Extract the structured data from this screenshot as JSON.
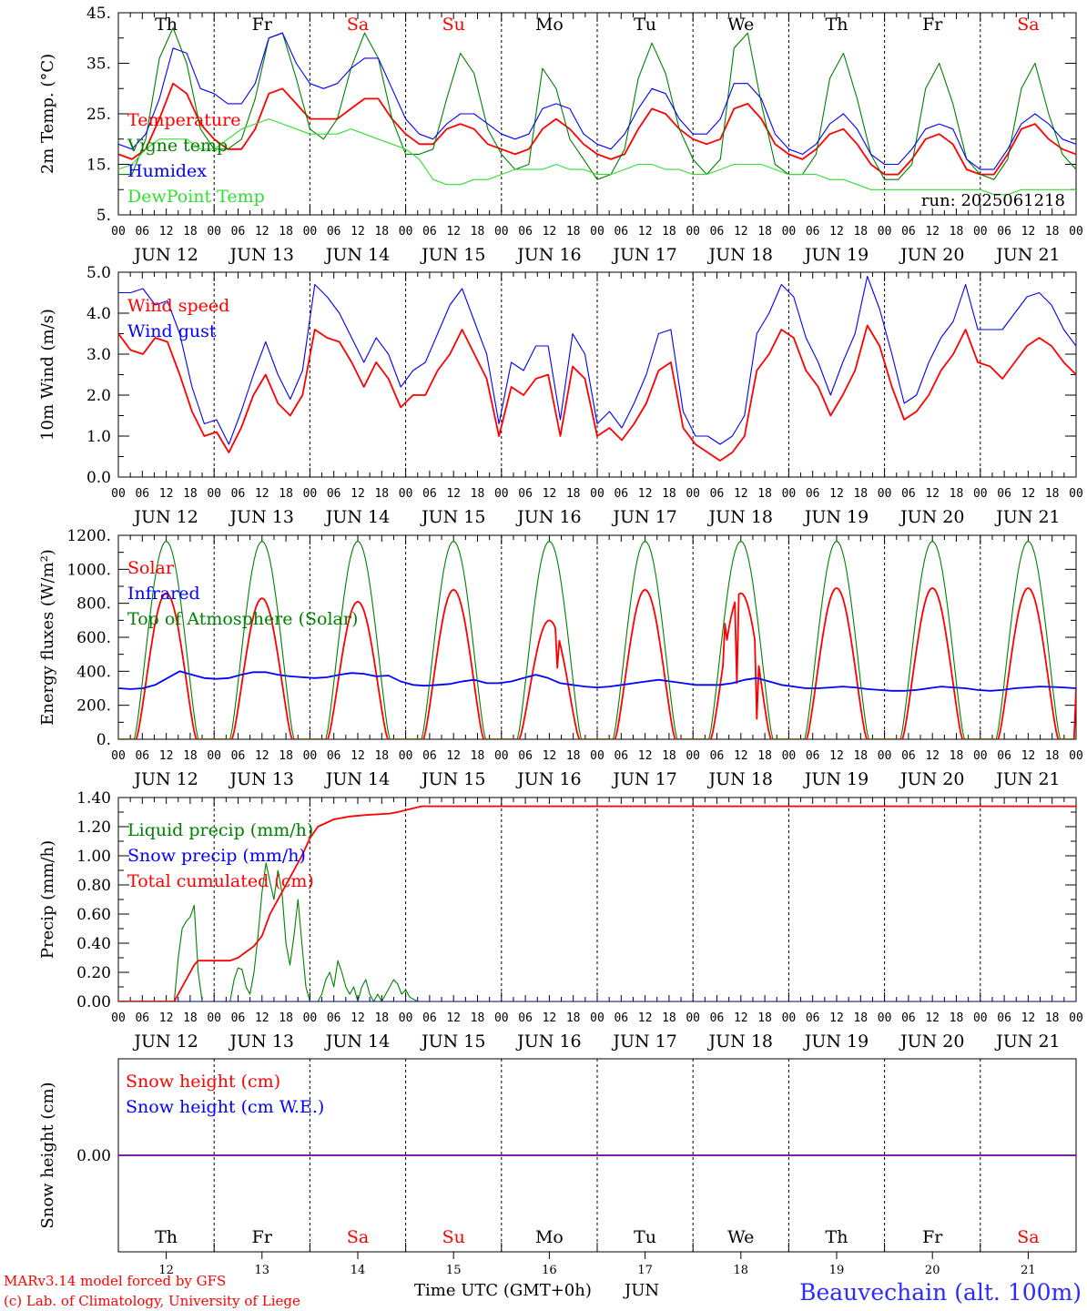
{
  "footer": {
    "model": "MARv3.14 model forced by GFS",
    "lab": "(c) Lab. of Climatology, University of Liege",
    "xlabel": "Time UTC (GMT+0h)",
    "month": "JUN",
    "station": "Beauvechain (alt. 100m)"
  },
  "colors": {
    "red": "#ff0000",
    "green": "#008000",
    "blue": "#0000ff",
    "lightgreen": "#33dd33",
    "weekend": "#ff0000"
  },
  "days": {
    "names": [
      "Th",
      "Fr",
      "Sa",
      "Su",
      "Mo",
      "Tu",
      "We",
      "Th",
      "Fr",
      "Sa"
    ],
    "weekend": [
      false,
      false,
      true,
      true,
      false,
      false,
      false,
      false,
      false,
      true
    ],
    "dates": [
      "JUN 12",
      "JUN 13",
      "JUN 14",
      "JUN 15",
      "JUN 16",
      "JUN 17",
      "JUN 18",
      "JUN 19",
      "JUN 20",
      "JUN 21"
    ],
    "numbers": [
      "12",
      "13",
      "14",
      "15",
      "16",
      "17",
      "18",
      "19",
      "20",
      "21"
    ],
    "hour_labels": [
      "00",
      "06",
      "12",
      "18"
    ],
    "end_label": "00"
  },
  "chart_data": [
    {
      "type": "line",
      "id": "temp",
      "ylabel": "2m Temp. (°C)",
      "ylim": [
        5,
        45
      ],
      "yticks": [
        "5.",
        "15.",
        "25.",
        "35.",
        "45."
      ],
      "yticks_values": [
        5,
        15,
        25,
        35,
        45
      ],
      "annotation": "run: 2025061218",
      "x_unit": "hours from 2025-06-12 00 UTC, 3-hourly",
      "series": [
        {
          "name": "Temperature",
          "color": "#ff0000",
          "values": [
            17,
            16,
            18,
            24,
            31,
            29,
            23,
            20,
            18,
            18,
            22,
            29,
            30,
            27,
            24,
            24,
            24,
            26,
            28,
            28,
            24,
            21,
            19,
            19,
            22,
            23,
            22,
            19,
            18,
            17,
            18,
            22,
            24,
            22,
            19,
            17,
            16,
            17,
            22,
            26,
            25,
            22,
            20,
            19,
            20,
            26,
            27,
            24,
            19,
            17,
            16,
            18,
            21,
            22,
            19,
            15,
            13,
            13,
            16,
            20,
            21,
            19,
            14,
            13,
            13,
            17,
            22,
            23,
            20,
            18,
            17
          ]
        },
        {
          "name": "Vigne temp",
          "color": "#008000",
          "values": [
            13,
            13,
            20,
            36,
            42,
            35,
            22,
            18,
            18,
            20,
            28,
            40,
            41,
            32,
            22,
            20,
            24,
            34,
            41,
            36,
            24,
            17,
            17,
            18,
            28,
            37,
            33,
            22,
            17,
            14,
            15,
            34,
            30,
            20,
            16,
            12,
            13,
            18,
            32,
            39,
            33,
            22,
            16,
            13,
            16,
            38,
            41,
            27,
            15,
            13,
            13,
            17,
            32,
            37,
            28,
            17,
            12,
            12,
            15,
            30,
            35,
            27,
            16,
            13,
            12,
            16,
            30,
            35,
            25,
            17,
            14
          ]
        },
        {
          "name": "Humidex",
          "color": "#0000ff",
          "values": [
            19,
            18,
            21,
            28,
            38,
            37,
            30,
            29,
            27,
            27,
            31,
            40,
            41,
            35,
            31,
            30,
            31,
            34,
            36,
            36,
            30,
            24,
            21,
            20,
            23,
            25,
            25,
            23,
            21,
            20,
            21,
            26,
            27,
            26,
            21,
            19,
            18,
            21,
            26,
            30,
            29,
            24,
            21,
            21,
            24,
            31,
            31,
            28,
            21,
            18,
            17,
            19,
            23,
            25,
            22,
            17,
            15,
            15,
            18,
            22,
            23,
            22,
            16,
            14,
            14,
            18,
            23,
            25,
            23,
            20,
            19
          ]
        },
        {
          "name": "DewPoint Temp",
          "color": "#33dd33",
          "values": [
            14,
            15,
            18,
            20,
            20,
            20,
            18,
            18,
            20,
            22,
            23,
            24,
            23,
            22,
            21,
            21,
            21,
            22,
            21,
            20,
            19,
            18,
            16,
            12,
            11,
            11,
            12,
            12,
            13,
            14,
            14,
            14,
            15,
            14,
            14,
            13,
            13,
            14,
            15,
            15,
            14,
            14,
            13,
            13,
            14,
            15,
            15,
            15,
            14,
            13,
            13,
            13,
            12,
            12,
            11,
            10,
            10,
            10,
            10,
            10,
            10,
            10,
            10,
            10,
            9,
            9,
            10,
            10,
            10,
            10,
            10
          ]
        }
      ]
    },
    {
      "type": "line",
      "id": "wind",
      "ylabel": "10m Wind (m/s)",
      "ylim": [
        0,
        5
      ],
      "yticks": [
        "0.0",
        "1.0",
        "2.0",
        "3.0",
        "4.0",
        "5.0"
      ],
      "yticks_values": [
        0,
        1,
        2,
        3,
        4,
        5
      ],
      "x_unit": "hours from 2025-06-12 00 UTC, 3-hourly",
      "series": [
        {
          "name": "Wind speed",
          "color": "#ff0000",
          "values": [
            3.5,
            3.1,
            3.0,
            3.4,
            3.3,
            2.5,
            1.6,
            1.0,
            1.1,
            0.6,
            1.2,
            2.0,
            2.5,
            1.8,
            1.5,
            2.0,
            3.6,
            3.4,
            3.3,
            2.8,
            2.2,
            2.8,
            2.4,
            1.7,
            2.0,
            2.0,
            2.6,
            3.0,
            3.6,
            3.0,
            2.4,
            1.0,
            2.2,
            2.0,
            2.4,
            2.5,
            1.0,
            2.7,
            2.4,
            1.0,
            1.2,
            0.9,
            1.3,
            1.8,
            2.6,
            2.8,
            1.2,
            0.8,
            0.6,
            0.4,
            0.6,
            1.0,
            2.6,
            3.0,
            3.6,
            3.4,
            2.6,
            2.2,
            1.5,
            2.0,
            2.6,
            3.7,
            3.2,
            2.2,
            1.4,
            1.6,
            2.0,
            2.6,
            3.0,
            3.6,
            2.8,
            2.7,
            2.4,
            2.8,
            3.2,
            3.4,
            3.2,
            2.8,
            2.5
          ]
        },
        {
          "name": "Wind gust",
          "color": "#0000ff",
          "values": [
            4.5,
            4.5,
            4.6,
            4.2,
            4.3,
            3.5,
            2.2,
            1.3,
            1.4,
            0.8,
            1.6,
            2.5,
            3.3,
            2.5,
            1.9,
            2.6,
            4.7,
            4.4,
            4.0,
            3.4,
            2.8,
            3.4,
            3.0,
            2.2,
            2.6,
            2.8,
            3.5,
            4.2,
            4.6,
            3.8,
            3.0,
            1.3,
            2.8,
            2.6,
            3.2,
            3.2,
            1.4,
            3.5,
            3.0,
            1.3,
            1.6,
            1.2,
            1.8,
            2.5,
            3.5,
            3.6,
            1.6,
            1.0,
            1.0,
            0.8,
            1.0,
            1.5,
            3.5,
            4.0,
            4.7,
            4.4,
            3.4,
            2.8,
            2.0,
            2.8,
            3.5,
            4.9,
            4.1,
            3.0,
            1.8,
            2.0,
            2.8,
            3.4,
            3.8,
            4.7,
            3.6,
            3.6,
            3.6,
            4.0,
            4.4,
            4.5,
            4.2,
            3.6,
            3.2
          ]
        }
      ]
    },
    {
      "type": "line",
      "id": "energy",
      "ylabel": "Energy fluxes (W/m²)",
      "ylim": [
        0,
        1200
      ],
      "yticks": [
        "0.",
        "200.",
        "400.",
        "600.",
        "800.",
        "1000.",
        "1200."
      ],
      "yticks_values": [
        0,
        200,
        400,
        600,
        800,
        1000,
        1200
      ],
      "x_unit": "hours from 2025-06-12 00 UTC",
      "series": [
        {
          "name": "Solar",
          "color": "#ff0000",
          "daily_peak": [
            860,
            830,
            810,
            880,
            700,
            880,
            860,
            890,
            890,
            890
          ],
          "dips": [
            {
              "x": 160,
              "v": 120
            },
            {
              "x": 152,
              "v": 680
            },
            {
              "x": 155,
              "v": 330
            },
            {
              "x": 252,
              "v": 300
            },
            {
              "x": 110,
              "v": 420
            }
          ]
        },
        {
          "name": "Infrared",
          "color": "#0000ff",
          "values": [
            300,
            295,
            300,
            320,
            360,
            400,
            380,
            360,
            355,
            360,
            380,
            395,
            395,
            380,
            370,
            365,
            360,
            365,
            380,
            390,
            385,
            370,
            375,
            340,
            320,
            315,
            320,
            325,
            340,
            350,
            330,
            330,
            340,
            360,
            380,
            360,
            330,
            320,
            310,
            305,
            310,
            320,
            330,
            340,
            350,
            340,
            330,
            320,
            320,
            320,
            330,
            350,
            360,
            340,
            320,
            310,
            300,
            300,
            305,
            310,
            305,
            295,
            290,
            285,
            285,
            290,
            300,
            310,
            305,
            300,
            290,
            285,
            290,
            300,
            305,
            310,
            308,
            305,
            300
          ]
        },
        {
          "name": "Top of Atmosphere (Solar)",
          "color": "#008000",
          "daily_peak": [
            1165,
            1165,
            1165,
            1165,
            1165,
            1165,
            1165,
            1165,
            1165,
            1165
          ],
          "sunrise_h": 4.0,
          "sunset_h": 20.0
        }
      ]
    },
    {
      "type": "line",
      "id": "precip",
      "ylabel": "Precip (mm/h)",
      "ylim": [
        0,
        1.4
      ],
      "yticks": [
        "0.00",
        "0.20",
        "0.40",
        "0.60",
        "0.80",
        "1.00",
        "1.20",
        "1.40"
      ],
      "yticks_values": [
        0,
        0.2,
        0.4,
        0.6,
        0.8,
        1.0,
        1.2,
        1.4
      ],
      "x_unit": "hours from 2025-06-12 00 UTC",
      "series": [
        {
          "name": "Liquid precip (mm/h)",
          "color": "#008000",
          "points": [
            [
              0,
              0
            ],
            [
              14,
              0
            ],
            [
              15,
              0.3
            ],
            [
              16,
              0.5
            ],
            [
              17,
              0.55
            ],
            [
              18,
              0.58
            ],
            [
              19,
              0.66
            ],
            [
              20,
              0.2
            ],
            [
              21,
              0
            ],
            [
              28,
              0
            ],
            [
              29,
              0.15
            ],
            [
              30,
              0.23
            ],
            [
              31,
              0.22
            ],
            [
              32,
              0.1
            ],
            [
              33,
              0.05
            ],
            [
              34,
              0.2
            ],
            [
              35,
              0.45
            ],
            [
              36,
              0.75
            ],
            [
              37,
              0.95
            ],
            [
              38,
              0.82
            ],
            [
              39,
              0.7
            ],
            [
              40,
              0.9
            ],
            [
              41,
              0.75
            ],
            [
              42,
              0.4
            ],
            [
              43,
              0.25
            ],
            [
              44,
              0.45
            ],
            [
              45,
              0.7
            ],
            [
              46,
              0.4
            ],
            [
              47,
              0.1
            ],
            [
              48,
              0
            ],
            [
              50,
              0
            ],
            [
              51,
              0.05
            ],
            [
              52,
              0.15
            ],
            [
              53,
              0.2
            ],
            [
              54,
              0.1
            ],
            [
              55,
              0.28
            ],
            [
              56,
              0.2
            ],
            [
              57,
              0.1
            ],
            [
              58,
              0.05
            ],
            [
              59,
              0.1
            ],
            [
              60,
              0
            ],
            [
              61,
              0.1
            ],
            [
              62,
              0.15
            ],
            [
              63,
              0.05
            ],
            [
              64,
              0
            ],
            [
              65,
              0.05
            ],
            [
              66,
              0
            ],
            [
              68,
              0.1
            ],
            [
              69,
              0.15
            ],
            [
              70,
              0.12
            ],
            [
              71,
              0.05
            ],
            [
              72,
              0.08
            ],
            [
              73,
              0.03
            ],
            [
              75,
              0
            ],
            [
              240,
              0
            ]
          ]
        },
        {
          "name": "Snow precip (mm/h)",
          "color": "#0000ff",
          "points": [
            [
              0,
              0
            ],
            [
              240,
              0
            ]
          ]
        },
        {
          "name": "Total cumulated (cm)",
          "color": "#ff0000",
          "points": [
            [
              0,
              0
            ],
            [
              14,
              0
            ],
            [
              16,
              0.1
            ],
            [
              19,
              0.25
            ],
            [
              20,
              0.28
            ],
            [
              28,
              0.28
            ],
            [
              30,
              0.3
            ],
            [
              34,
              0.38
            ],
            [
              36,
              0.45
            ],
            [
              38,
              0.6
            ],
            [
              42,
              0.8
            ],
            [
              46,
              1.0
            ],
            [
              48,
              1.12
            ],
            [
              50,
              1.2
            ],
            [
              54,
              1.25
            ],
            [
              58,
              1.27
            ],
            [
              62,
              1.28
            ],
            [
              68,
              1.29
            ],
            [
              70,
              1.3
            ],
            [
              73,
              1.32
            ],
            [
              76,
              1.34
            ],
            [
              240,
              1.34
            ]
          ]
        }
      ]
    },
    {
      "type": "line",
      "id": "snow",
      "ylabel": "Snow height (cm)",
      "yticks": [
        "0.00"
      ],
      "yticks_values": [
        0
      ],
      "ylim": [
        -1,
        1
      ],
      "series": [
        {
          "name": "Snow height (cm)",
          "color": "#ff0000",
          "points": [
            [
              0,
              0
            ],
            [
              240,
              0
            ]
          ]
        },
        {
          "name": "Snow height (cm W.E.)",
          "color": "#0000ff",
          "points": [
            [
              0,
              0
            ],
            [
              240,
              0
            ]
          ]
        }
      ]
    }
  ]
}
